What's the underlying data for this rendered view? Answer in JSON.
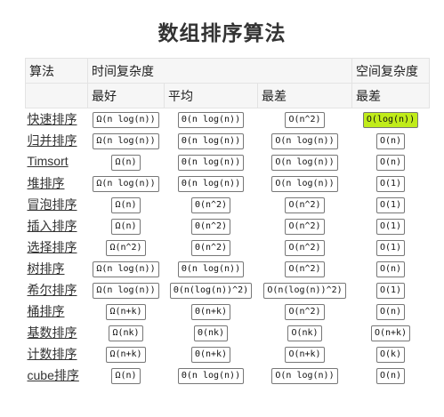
{
  "title": "数组排序算法",
  "headers": {
    "algorithm": "算法",
    "time_complexity": "时间复杂度",
    "space_complexity": "空间复杂度",
    "best": "最好",
    "average": "平均",
    "worst": "最差",
    "space_worst": "最差"
  },
  "colors": {
    "green": "#44c021",
    "yellow": "#ffff00",
    "orange": "#ffb44c",
    "red": "#ff8a8a",
    "lime": "#c0ec1a"
  },
  "rows": [
    {
      "name": "快速排序",
      "best": "Ω(n log(n))",
      "avg": "Θ(n log(n))",
      "worst": "O(n^2)",
      "space": "O(log(n))",
      "c": [
        "orange",
        "orange",
        "red",
        "lime"
      ]
    },
    {
      "name": "归并排序",
      "best": "Ω(n log(n))",
      "avg": "Θ(n log(n))",
      "worst": "O(n log(n))",
      "space": "O(n)",
      "c": [
        "orange",
        "orange",
        "orange",
        "yellow"
      ]
    },
    {
      "name": "Timsort",
      "best": "Ω(n)",
      "avg": "Θ(n log(n))",
      "worst": "O(n log(n))",
      "space": "O(n)",
      "c": [
        "yellow",
        "orange",
        "orange",
        "yellow"
      ]
    },
    {
      "name": "堆排序",
      "best": "Ω(n log(n))",
      "avg": "Θ(n log(n))",
      "worst": "O(n log(n))",
      "space": "O(1)",
      "c": [
        "orange",
        "orange",
        "orange",
        "green"
      ]
    },
    {
      "name": "冒泡排序",
      "best": "Ω(n)",
      "avg": "Θ(n^2)",
      "worst": "O(n^2)",
      "space": "O(1)",
      "c": [
        "yellow",
        "red",
        "red",
        "green"
      ]
    },
    {
      "name": "插入排序",
      "best": "Ω(n)",
      "avg": "Θ(n^2)",
      "worst": "O(n^2)",
      "space": "O(1)",
      "c": [
        "yellow",
        "red",
        "red",
        "green"
      ]
    },
    {
      "name": "选择排序",
      "best": "Ω(n^2)",
      "avg": "Θ(n^2)",
      "worst": "O(n^2)",
      "space": "O(1)",
      "c": [
        "red",
        "red",
        "red",
        "green"
      ]
    },
    {
      "name": "树排序",
      "best": "Ω(n log(n))",
      "avg": "Θ(n log(n))",
      "worst": "O(n^2)",
      "space": "O(n)",
      "c": [
        "orange",
        "orange",
        "red",
        "yellow"
      ]
    },
    {
      "name": "希尔排序",
      "best": "Ω(n log(n))",
      "avg": "Θ(n(log(n))^2)",
      "worst": "O(n(log(n))^2)",
      "space": "O(1)",
      "c": [
        "orange",
        "red",
        "red",
        "green"
      ]
    },
    {
      "name": "桶排序",
      "best": "Ω(n+k)",
      "avg": "Θ(n+k)",
      "worst": "O(n^2)",
      "space": "O(n)",
      "c": [
        "green",
        "green",
        "red",
        "yellow"
      ]
    },
    {
      "name": "基数排序",
      "best": "Ω(nk)",
      "avg": "Θ(nk)",
      "worst": "O(nk)",
      "space": "O(n+k)",
      "c": [
        "green",
        "green",
        "green",
        "yellow"
      ]
    },
    {
      "name": "计数排序",
      "best": "Ω(n+k)",
      "avg": "Θ(n+k)",
      "worst": "O(n+k)",
      "space": "O(k)",
      "c": [
        "green",
        "green",
        "green",
        "yellow"
      ]
    },
    {
      "name": "cube排序",
      "best": "Ω(n)",
      "avg": "Θ(n log(n))",
      "worst": "O(n log(n))",
      "space": "O(n)",
      "c": [
        "yellow",
        "orange",
        "orange",
        "yellow"
      ]
    }
  ]
}
